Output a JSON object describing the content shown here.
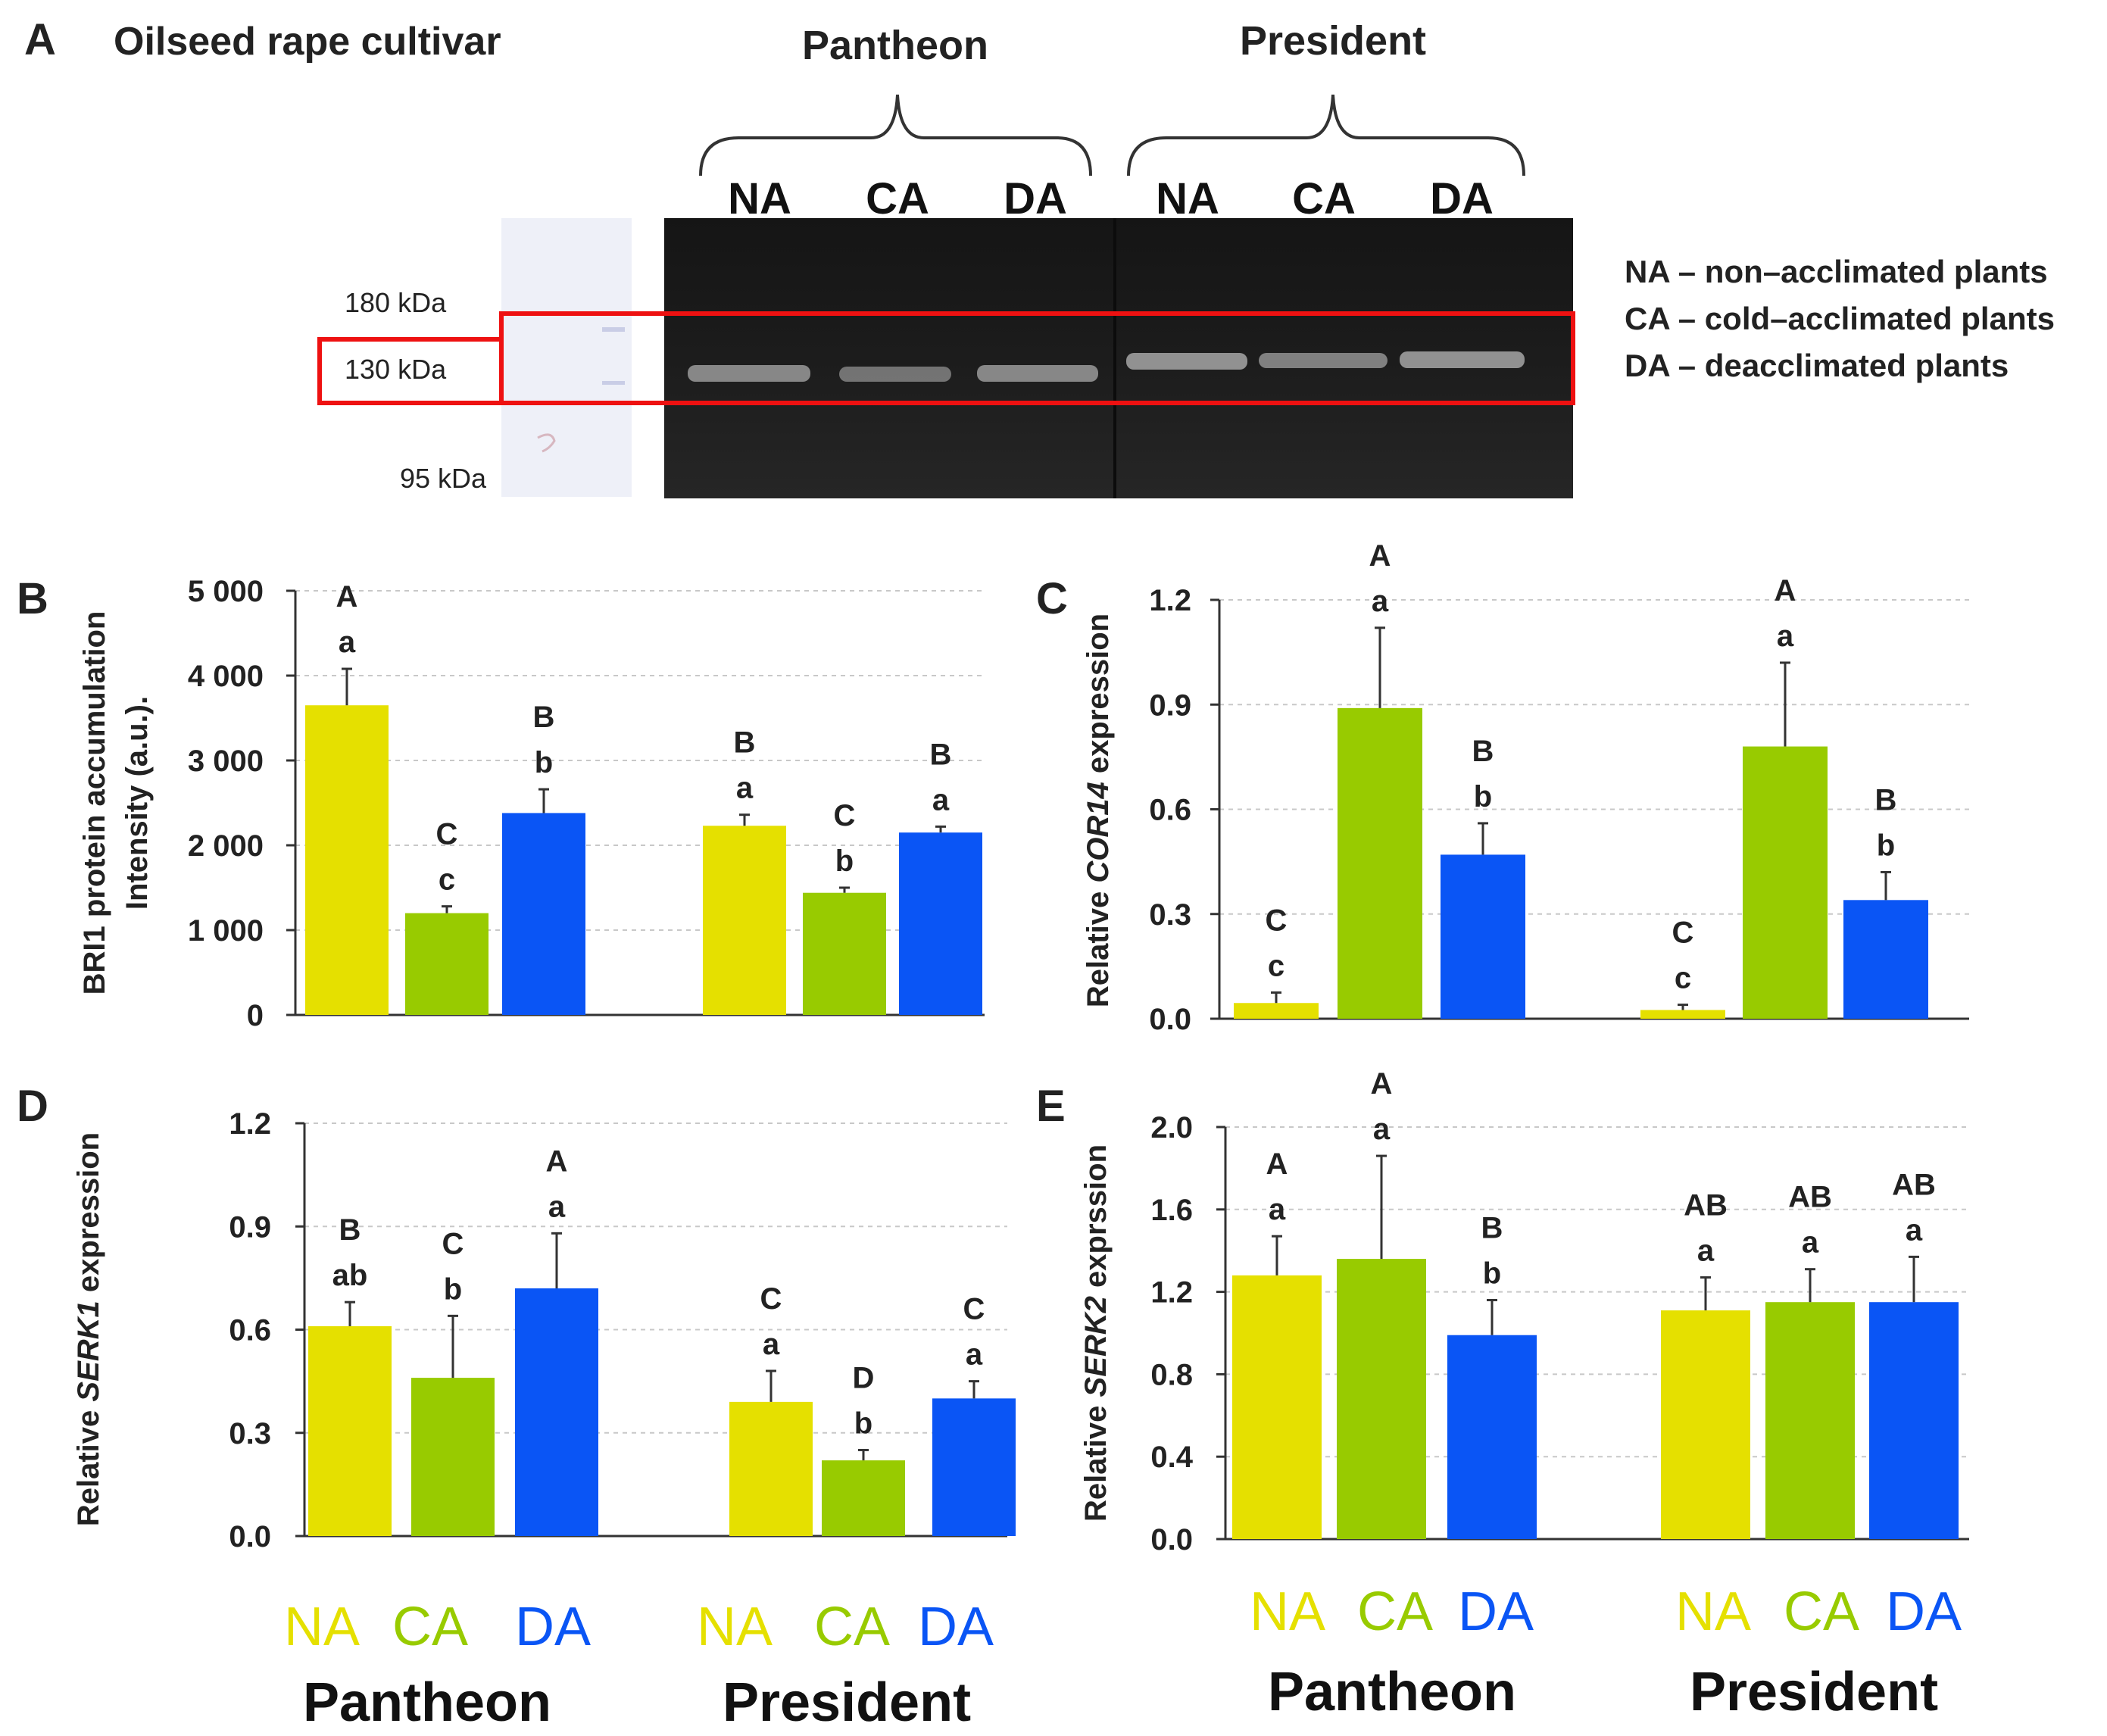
{
  "colors": {
    "NA": "#e5e000",
    "CA": "#98cb00",
    "DA": "#0a55f5",
    "highlight": "#ee1111"
  },
  "panelA": {
    "letter": "A",
    "title": "Oilseed rape cultivar",
    "cultivars": [
      "Pantheon",
      "President"
    ],
    "lanes": [
      "NA",
      "CA",
      "DA",
      "NA",
      "CA",
      "DA"
    ],
    "markers": [
      "180 kDa",
      "130 kDa",
      "95 kDa"
    ],
    "legend": [
      "NA – non–acclimated plants",
      "CA – cold–acclimated plants",
      "DA – deacclimated plants"
    ]
  },
  "bottom_labels": {
    "treatments": [
      "NA",
      "CA",
      "DA"
    ],
    "cultivars": [
      "Pantheon",
      "President"
    ]
  },
  "chart_data": [
    {
      "panel": "B",
      "type": "bar",
      "ylabel_lines": [
        "BRI1 protein accumulation",
        "Intensity (a.u.)."
      ],
      "ylim": [
        0,
        5000
      ],
      "yticks": [
        "0",
        "1 000",
        "2 000",
        "3 000",
        "4 000",
        "5 000"
      ],
      "groups": [
        "Pantheon",
        "President"
      ],
      "categories": [
        "NA",
        "CA",
        "DA"
      ],
      "values": [
        [
          3650,
          1200,
          2380
        ],
        [
          2230,
          1440,
          2150
        ]
      ],
      "errors": [
        [
          430,
          80,
          280
        ],
        [
          130,
          60,
          70
        ]
      ],
      "upper_letters": [
        [
          "A",
          "C",
          "B"
        ],
        [
          "B",
          "C",
          "B"
        ]
      ],
      "lower_letters": [
        [
          "a",
          "c",
          "b"
        ],
        [
          "a",
          "b",
          "a"
        ]
      ]
    },
    {
      "panel": "C",
      "type": "bar",
      "ylabel_parts": [
        "Relative ",
        "COR14",
        " expression"
      ],
      "ylim": [
        0,
        1.2
      ],
      "yticks": [
        "0.0",
        "0.3",
        "0.6",
        "0.9",
        "1.2"
      ],
      "groups": [
        "Pantheon",
        "President"
      ],
      "categories": [
        "NA",
        "CA",
        "DA"
      ],
      "values": [
        [
          0.045,
          0.89,
          0.47
        ],
        [
          0.025,
          0.78,
          0.34
        ]
      ],
      "errors": [
        [
          0.03,
          0.23,
          0.09
        ],
        [
          0.015,
          0.24,
          0.08
        ]
      ],
      "upper_letters": [
        [
          "C",
          "A",
          "B"
        ],
        [
          "C",
          "A",
          "B"
        ]
      ],
      "lower_letters": [
        [
          "c",
          "a",
          "b"
        ],
        [
          "c",
          "a",
          "b"
        ]
      ]
    },
    {
      "panel": "D",
      "type": "bar",
      "ylabel_parts": [
        "Relative ",
        "SERK1",
        "  expression"
      ],
      "ylim": [
        0,
        1.2
      ],
      "yticks": [
        "0.0",
        "0.3",
        "0.6",
        "0.9",
        "1.2"
      ],
      "groups": [
        "Pantheon",
        "President"
      ],
      "categories": [
        "NA",
        "CA",
        "DA"
      ],
      "values": [
        [
          0.61,
          0.46,
          0.72
        ],
        [
          0.39,
          0.22,
          0.4
        ]
      ],
      "errors": [
        [
          0.07,
          0.18,
          0.16
        ],
        [
          0.09,
          0.03,
          0.05
        ]
      ],
      "upper_letters": [
        [
          "B",
          "C",
          "A"
        ],
        [
          "C",
          "D",
          "C"
        ]
      ],
      "lower_letters": [
        [
          "ab",
          "b",
          "a"
        ],
        [
          "a",
          "b",
          "a"
        ]
      ]
    },
    {
      "panel": "E",
      "type": "bar",
      "ylabel_parts": [
        "Relative ",
        "SERK2",
        " exprssion"
      ],
      "ylim": [
        0,
        2.0
      ],
      "yticks": [
        "0.0",
        "0.4",
        "0.8",
        "1.2",
        "1.6",
        "2.0"
      ],
      "groups": [
        "Pantheon",
        "President"
      ],
      "categories": [
        "NA",
        "CA",
        "DA"
      ],
      "values": [
        [
          1.28,
          1.36,
          0.99
        ],
        [
          1.11,
          1.15,
          1.15
        ]
      ],
      "errors": [
        [
          0.19,
          0.5,
          0.17
        ],
        [
          0.16,
          0.16,
          0.22
        ]
      ],
      "upper_letters": [
        [
          "A",
          "A",
          "B"
        ],
        [
          "AB",
          "AB",
          "AB"
        ]
      ],
      "lower_letters": [
        [
          "a",
          "a",
          "b"
        ],
        [
          "a",
          "a",
          "a"
        ]
      ]
    }
  ]
}
